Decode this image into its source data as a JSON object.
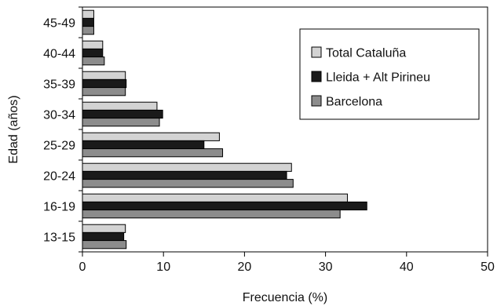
{
  "chart_data": {
    "type": "bar",
    "orientation": "horizontal",
    "categories": [
      "13-15",
      "16-19",
      "20-24",
      "25-29",
      "30-34",
      "35-39",
      "40-44",
      "45-49"
    ],
    "series": [
      {
        "name": "Total Cataluña",
        "color": "#d3d3d3",
        "values": [
          5.3,
          32.7,
          25.8,
          16.9,
          9.2,
          5.3,
          2.5,
          1.4
        ]
      },
      {
        "name": "Lleida + Alt Pirineu",
        "color": "#1a1a1a",
        "values": [
          5.1,
          35.1,
          25.2,
          15.0,
          9.9,
          5.4,
          2.5,
          1.4
        ]
      },
      {
        "name": "Barcelona",
        "color": "#8c8c8c",
        "values": [
          5.4,
          31.8,
          26.0,
          17.3,
          9.5,
          5.3,
          2.7,
          1.4
        ]
      }
    ],
    "xlabel": "Frecuencia (%)",
    "ylabel": "Edad (años)",
    "xlim": [
      0,
      50
    ],
    "xticks": [
      "0",
      "10",
      "20",
      "30",
      "40",
      "50"
    ],
    "grid": false,
    "legend_position": "top-right"
  }
}
